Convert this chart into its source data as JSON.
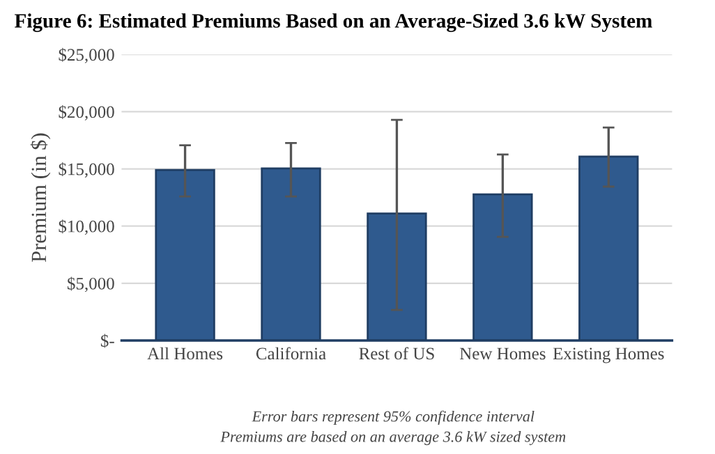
{
  "chart_data": {
    "type": "bar",
    "title": "Figure 6: Estimated Premiums Based on an Average-Sized 3.6 kW System",
    "ylabel": "Premium (in $)",
    "categories": [
      "All Homes",
      "California",
      "Rest of US",
      "New Homes",
      "Existing Homes"
    ],
    "values": [
      14900,
      15040,
      11100,
      12770,
      16080
    ],
    "errors": [
      [
        12590,
        17070
      ],
      [
        12590,
        17260
      ],
      [
        2670,
        19290
      ],
      [
        9060,
        16260
      ],
      [
        13450,
        18610
      ]
    ],
    "color": "#2f5a8e",
    "ylim": [
      0,
      25000
    ],
    "yticks": [
      {
        "value": 0,
        "label": "$-"
      },
      {
        "value": 5000,
        "label": "$5,000"
      },
      {
        "value": 10000,
        "label": "$10,000"
      },
      {
        "value": 15000,
        "label": "$15,000"
      },
      {
        "value": 20000,
        "label": "$20,000"
      },
      {
        "value": 25000,
        "label": "$25,000"
      }
    ],
    "grid": "y",
    "annotations": [
      "Error bars represent 95% confidence interval",
      "Premiums are based on an average 3.6 kW sized system"
    ]
  }
}
